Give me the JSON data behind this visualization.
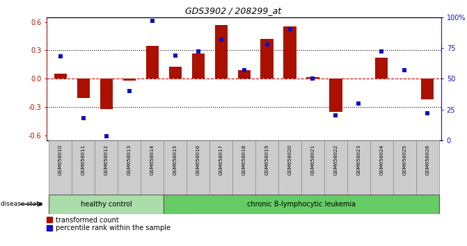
{
  "title": "GDS3902 / 208299_at",
  "samples": [
    "GSM658010",
    "GSM658011",
    "GSM658012",
    "GSM658013",
    "GSM658014",
    "GSM658015",
    "GSM658016",
    "GSM658017",
    "GSM658018",
    "GSM658019",
    "GSM658020",
    "GSM658021",
    "GSM658022",
    "GSM658023",
    "GSM658024",
    "GSM658025",
    "GSM658026"
  ],
  "bar_values": [
    0.05,
    -0.2,
    -0.32,
    -0.02,
    0.35,
    0.13,
    0.27,
    0.57,
    0.09,
    0.42,
    0.55,
    0.02,
    -0.35,
    0.0,
    0.22,
    0.0,
    -0.22
  ],
  "percentile_values": [
    68,
    18,
    3,
    40,
    97,
    69,
    72,
    82,
    57,
    78,
    90,
    50,
    20,
    30,
    72,
    57,
    22
  ],
  "healthy_control_count": 5,
  "bar_color": "#AA1100",
  "percentile_color": "#1111BB",
  "healthy_color": "#AADDAA",
  "leukemia_color": "#66CC66",
  "sample_box_color": "#CCCCCC",
  "ylim": [
    -0.65,
    0.65
  ],
  "y2lim": [
    0,
    100
  ],
  "yticks_left": [
    -0.6,
    -0.3,
    0.0,
    0.3,
    0.6
  ],
  "y2ticks": [
    0,
    25,
    50,
    75,
    100
  ],
  "dotted_lines": [
    -0.3,
    0.3
  ],
  "zero_line_color": "#CC0000",
  "fig_width": 6.71,
  "fig_height": 3.54,
  "dpi": 100
}
